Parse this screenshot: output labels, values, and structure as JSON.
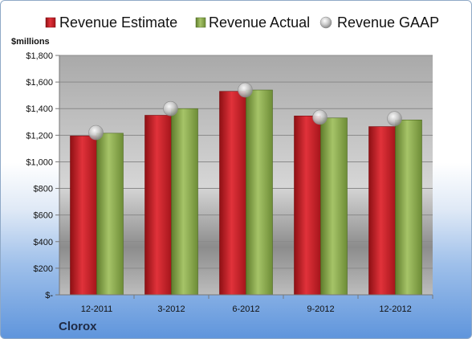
{
  "chart_data": {
    "type": "bar",
    "ylabel": "$millions",
    "categories": [
      "12-2011",
      "3-2012",
      "6-2012",
      "9-2012",
      "12-2012"
    ],
    "series": [
      {
        "name": "Revenue Estimate",
        "values": [
          1195,
          1350,
          1530,
          1345,
          1265
        ]
      },
      {
        "name": "Revenue Actual",
        "values": [
          1215,
          1400,
          1540,
          1330,
          1315
        ]
      }
    ],
    "scatter_series": {
      "name": "Revenue GAAP",
      "values": [
        1220,
        1400,
        1540,
        1335,
        1325
      ]
    },
    "y_ticks": [
      "$-",
      "$200",
      "$400",
      "$600",
      "$800",
      "$1,000",
      "$1,200",
      "$1,400",
      "$1,600",
      "$1,800"
    ],
    "ylim": [
      0,
      1800
    ],
    "grid": true,
    "legend": "top",
    "colors": {
      "estimate": "#c8262e",
      "actual": "#8fae52",
      "gaap": "#c8c8c8"
    }
  },
  "company": "Clorox"
}
